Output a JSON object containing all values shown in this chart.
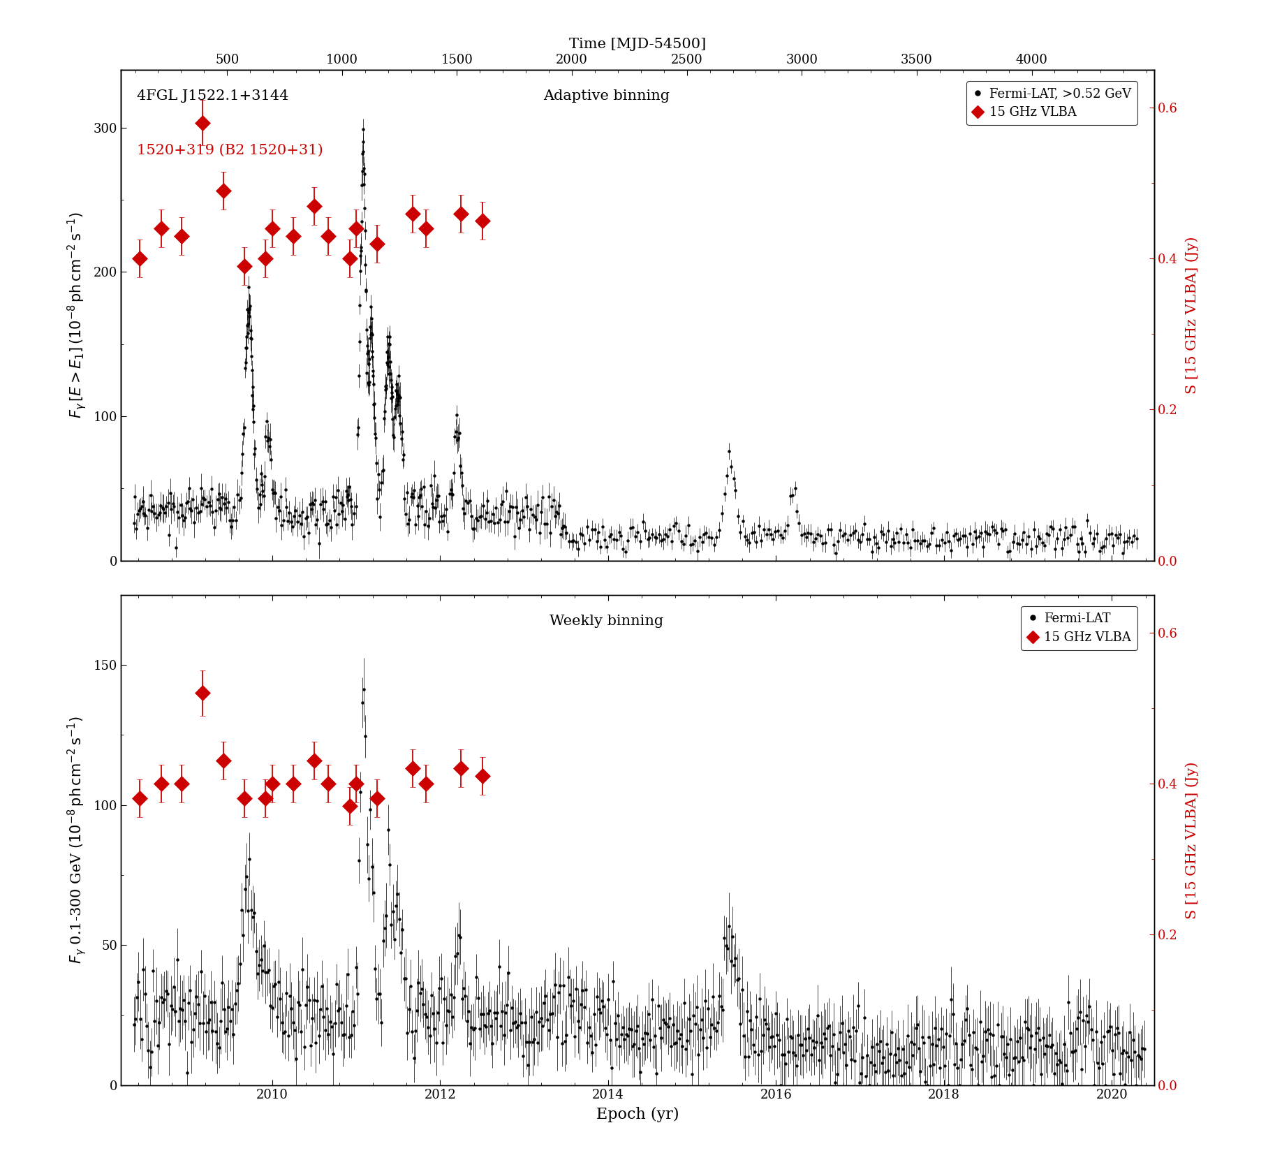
{
  "title_top": "Time [MJD-54500]",
  "xlabel_bottom": "Epoch (yr)",
  "top_panel": {
    "ylabel_left": "F$_{\\gamma}$ [E>E$_1$] (10$^{-8}$ ph cm$^{-2}$ s$^{-1}$)",
    "ylabel_right": "S [15 GHz VLBA] (Jy)",
    "label_source_black": "4FGL J1522.1+3144",
    "label_source_red": "1520+319 (B2 1520+31)",
    "label_binning": "Adaptive binning",
    "ylim_left": [
      0,
      340
    ],
    "ylim_right": [
      0,
      0.65
    ],
    "yticks_left": [
      0,
      100,
      200,
      300
    ],
    "yticks_right": [
      0.0,
      0.2,
      0.4,
      0.6
    ],
    "legend_entries": [
      "Fermi-LAT, >0.52 GeV",
      "15 GHz VLBA"
    ],
    "vlba_x": [
      2008.42,
      2008.68,
      2008.92,
      2009.17,
      2009.42,
      2009.67,
      2009.92,
      2010.0,
      2010.25,
      2010.5,
      2010.67,
      2010.92,
      2011.0,
      2011.25,
      2011.67,
      2011.83,
      2012.25,
      2012.5
    ],
    "vlba_y": [
      0.4,
      0.44,
      0.43,
      0.58,
      0.49,
      0.39,
      0.4,
      0.44,
      0.43,
      0.47,
      0.43,
      0.4,
      0.44,
      0.42,
      0.46,
      0.44,
      0.46,
      0.45
    ],
    "vlba_yerr": [
      0.025,
      0.025,
      0.025,
      0.03,
      0.025,
      0.025,
      0.025,
      0.025,
      0.025,
      0.025,
      0.025,
      0.025,
      0.025,
      0.025,
      0.025,
      0.025,
      0.025,
      0.025
    ]
  },
  "bottom_panel": {
    "ylabel_left": "F$_{\\gamma}$ 0.1-300 GeV (10$^{-8}$ ph cm$^{-2}$ s$^{-1}$)",
    "ylabel_right": "S [15 GHz VLBA] (Jy)",
    "label_binning": "Weekly binning",
    "ylim_left": [
      0,
      175
    ],
    "ylim_right": [
      0,
      0.65
    ],
    "yticks_left": [
      0,
      50,
      100,
      150
    ],
    "yticks_right": [
      0.0,
      0.2,
      0.4,
      0.6
    ],
    "legend_entries": [
      "Fermi-LAT",
      "15 GHz VLBA"
    ],
    "vlba_x": [
      2008.42,
      2008.68,
      2008.92,
      2009.17,
      2009.42,
      2009.67,
      2009.92,
      2010.0,
      2010.25,
      2010.5,
      2010.67,
      2010.92,
      2011.0,
      2011.25,
      2011.67,
      2011.83,
      2012.25,
      2012.5
    ],
    "vlba_y": [
      0.38,
      0.4,
      0.4,
      0.52,
      0.43,
      0.38,
      0.38,
      0.4,
      0.4,
      0.43,
      0.4,
      0.37,
      0.4,
      0.38,
      0.42,
      0.4,
      0.42,
      0.41
    ],
    "vlba_yerr": [
      0.025,
      0.025,
      0.025,
      0.03,
      0.025,
      0.025,
      0.025,
      0.025,
      0.025,
      0.025,
      0.025,
      0.025,
      0.025,
      0.025,
      0.025,
      0.025,
      0.025,
      0.025
    ]
  },
  "xrange_year": [
    2008.2,
    2020.5
  ],
  "mjd_ticks": [
    500,
    1000,
    1500,
    2000,
    2500,
    3000,
    3500,
    4000
  ],
  "year_ticks": [
    2010,
    2012,
    2014,
    2016,
    2018,
    2020
  ],
  "red_color": "#cc0000",
  "black_color": "#000000",
  "bg_color": "#ffffff"
}
